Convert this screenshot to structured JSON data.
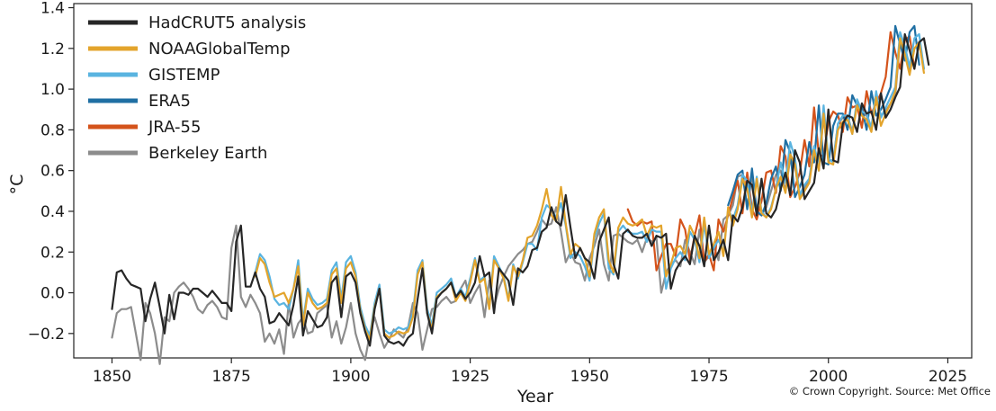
{
  "credit": "© Crown Copyright. Source: Met Office",
  "chart_data": {
    "type": "line",
    "title": "",
    "xlabel": "Year",
    "ylabel": "°C",
    "xlim": [
      1842,
      2030
    ],
    "ylim": [
      -0.32,
      1.42
    ],
    "xticks": [
      1850,
      1875,
      1900,
      1925,
      1950,
      1975,
      2000,
      2025
    ],
    "yticks": [
      -0.2,
      0.0,
      0.2,
      0.4,
      0.6,
      0.8,
      1.0,
      1.2,
      1.4
    ],
    "ytick_labels": [
      "−0.2",
      "0.0",
      "0.2",
      "0.4",
      "0.6",
      "0.8",
      "1.0",
      "1.2",
      "1.4"
    ],
    "grid": false,
    "legend_position": "top-left",
    "series": [
      {
        "name": "Berkeley Earth",
        "color": "#8c8c8c",
        "start": 1850,
        "values": [
          -0.22,
          -0.1,
          -0.08,
          -0.08,
          -0.07,
          -0.2,
          -0.33,
          -0.05,
          -0.1,
          -0.2,
          -0.35,
          -0.12,
          -0.14,
          0.0,
          0.03,
          0.05,
          0.02,
          -0.02,
          -0.08,
          -0.1,
          -0.06,
          -0.04,
          -0.07,
          -0.12,
          -0.13,
          0.22,
          0.33,
          -0.02,
          -0.07,
          -0.01,
          -0.05,
          -0.1,
          -0.24,
          -0.2,
          -0.25,
          -0.18,
          -0.3,
          -0.05,
          -0.22,
          -0.15,
          -0.12,
          -0.2,
          -0.19,
          -0.1,
          -0.08,
          -0.06,
          -0.22,
          -0.14,
          -0.25,
          -0.17,
          -0.05,
          -0.2,
          -0.28,
          -0.33,
          -0.2,
          -0.12,
          -0.2,
          -0.27,
          -0.23,
          -0.18,
          -0.2,
          -0.22,
          -0.17,
          -0.05,
          -0.1,
          -0.28,
          -0.18,
          -0.08,
          -0.07,
          -0.04,
          -0.02,
          -0.05,
          -0.04,
          0.02,
          0.06,
          -0.05,
          0.0,
          0.04,
          -0.12,
          0.06,
          -0.07,
          0.02,
          0.08,
          0.13,
          0.16,
          0.19,
          0.21,
          0.24,
          0.25,
          0.3,
          0.36,
          0.33,
          0.34,
          0.42,
          0.3,
          0.15,
          0.2,
          0.15,
          0.14,
          0.06,
          0.17,
          0.23,
          0.31,
          0.14,
          0.06,
          0.28,
          0.29,
          0.27,
          0.25,
          0.24,
          0.26,
          0.2,
          0.27,
          0.25,
          0.27,
          0.0,
          0.1,
          0.14,
          0.16,
          0.13,
          0.26,
          0.2,
          0.14,
          0.31,
          0.15,
          0.18,
          0.23,
          0.16,
          0.36,
          0.38,
          0.43,
          0.57,
          0.58,
          0.42,
          0.58,
          0.4,
          0.38,
          0.42,
          0.5,
          0.58,
          0.6,
          0.5,
          0.66,
          0.62,
          0.47,
          0.51,
          0.56,
          0.69,
          0.6,
          0.87,
          0.65,
          0.65,
          0.83,
          0.86,
          0.87,
          0.79,
          0.93,
          0.88,
          0.87,
          0.81,
          0.96,
          0.87,
          0.89,
          0.93,
          0.97,
          1.24,
          1.18,
          1.08,
          1.2,
          1.22,
          1.1
        ]
      },
      {
        "name": "JRA-55",
        "color": "#d4531b",
        "start": 1958,
        "values": [
          0.41,
          0.35,
          0.33,
          0.35,
          0.34,
          0.35,
          0.11,
          0.18,
          0.24,
          0.24,
          0.18,
          0.36,
          0.31,
          0.16,
          0.28,
          0.38,
          0.15,
          0.19,
          0.11,
          0.36,
          0.3,
          0.38,
          0.47,
          0.55,
          0.39,
          0.59,
          0.41,
          0.36,
          0.45,
          0.59,
          0.6,
          0.49,
          0.72,
          0.67,
          0.47,
          0.52,
          0.59,
          0.75,
          0.62,
          0.91,
          0.68,
          0.67,
          0.84,
          0.89,
          0.87,
          0.79,
          0.96,
          0.91,
          0.92,
          0.81,
          0.99,
          0.88,
          0.93,
          0.98,
          1.06,
          1.28,
          1.18,
          1.1,
          1.24,
          1.26,
          1.1
        ]
      },
      {
        "name": "ERA5",
        "color": "#1f6fa3",
        "start": 1979,
        "values": [
          0.43,
          0.5,
          0.58,
          0.6,
          0.41,
          0.61,
          0.4,
          0.38,
          0.44,
          0.56,
          0.62,
          0.5,
          0.75,
          0.69,
          0.47,
          0.52,
          0.58,
          0.74,
          0.64,
          0.92,
          0.64,
          0.63,
          0.82,
          0.88,
          0.88,
          0.8,
          0.97,
          0.92,
          0.91,
          0.8,
          0.99,
          0.87,
          0.9,
          0.95,
          1.01,
          1.31,
          1.22,
          1.14,
          1.28,
          1.31,
          1.12
        ]
      },
      {
        "name": "GISTEMP",
        "color": "#5ab4e0",
        "start": 1880,
        "values": [
          0.1,
          0.19,
          0.16,
          0.08,
          -0.03,
          -0.06,
          -0.05,
          -0.08,
          0.02,
          0.16,
          -0.14,
          0.02,
          -0.03,
          -0.06,
          -0.05,
          -0.03,
          0.11,
          0.15,
          -0.03,
          0.15,
          0.18,
          0.1,
          -0.07,
          -0.16,
          -0.21,
          -0.05,
          0.04,
          -0.18,
          -0.2,
          -0.19,
          -0.17,
          -0.18,
          -0.17,
          -0.1,
          0.11,
          0.16,
          -0.08,
          -0.16,
          0.0,
          0.02,
          0.04,
          0.07,
          -0.02,
          0.02,
          -0.02,
          0.07,
          0.17,
          0.06,
          0.08,
          -0.07,
          0.18,
          0.13,
          0.08,
          -0.03,
          0.14,
          0.07,
          0.15,
          0.24,
          0.24,
          0.21,
          0.37,
          0.43,
          0.41,
          0.37,
          0.44,
          0.33,
          0.17,
          0.2,
          0.18,
          0.13,
          0.06,
          0.27,
          0.34,
          0.39,
          0.12,
          0.09,
          0.3,
          0.33,
          0.3,
          0.29,
          0.29,
          0.3,
          0.25,
          0.31,
          0.3,
          0.3,
          0.02,
          0.12,
          0.17,
          0.2,
          0.16,
          0.3,
          0.26,
          0.15,
          0.34,
          0.17,
          0.22,
          0.26,
          0.2,
          0.41,
          0.36,
          0.43,
          0.58,
          0.55,
          0.39,
          0.57,
          0.4,
          0.37,
          0.42,
          0.51,
          0.64,
          0.54,
          0.74,
          0.66,
          0.48,
          0.53,
          0.56,
          0.72,
          0.63,
          0.92,
          0.66,
          0.64,
          0.83,
          0.87,
          0.87,
          0.78,
          0.95,
          0.89,
          0.88,
          0.81,
          0.99,
          0.86,
          0.91,
          0.96,
          1.01,
          1.28,
          1.21,
          1.11,
          1.25,
          1.27,
          1.1
        ]
      },
      {
        "name": "NOAAGlobalTemp",
        "color": "#e3a42c",
        "start": 1880,
        "values": [
          0.08,
          0.17,
          0.14,
          0.05,
          -0.02,
          -0.01,
          0.0,
          -0.05,
          0.02,
          0.13,
          -0.16,
          0.0,
          -0.05,
          -0.08,
          -0.07,
          -0.05,
          0.09,
          0.12,
          -0.05,
          0.12,
          0.15,
          0.08,
          -0.09,
          -0.18,
          -0.23,
          -0.07,
          0.02,
          -0.2,
          -0.22,
          -0.21,
          -0.19,
          -0.2,
          -0.19,
          -0.12,
          0.09,
          0.15,
          -0.1,
          -0.18,
          -0.02,
          0.0,
          0.02,
          0.05,
          -0.04,
          0.0,
          -0.04,
          0.05,
          0.16,
          0.05,
          0.07,
          -0.08,
          0.16,
          0.12,
          0.07,
          -0.04,
          0.13,
          0.08,
          0.16,
          0.27,
          0.28,
          0.33,
          0.41,
          0.51,
          0.38,
          0.35,
          0.52,
          0.34,
          0.19,
          0.24,
          0.22,
          0.17,
          0.08,
          0.29,
          0.37,
          0.41,
          0.16,
          0.1,
          0.32,
          0.37,
          0.34,
          0.33,
          0.34,
          0.36,
          0.28,
          0.33,
          0.32,
          0.33,
          0.08,
          0.14,
          0.22,
          0.23,
          0.19,
          0.33,
          0.28,
          0.17,
          0.37,
          0.19,
          0.24,
          0.3,
          0.18,
          0.42,
          0.33,
          0.41,
          0.56,
          0.51,
          0.37,
          0.56,
          0.39,
          0.37,
          0.41,
          0.51,
          0.57,
          0.49,
          0.68,
          0.63,
          0.46,
          0.5,
          0.54,
          0.7,
          0.6,
          0.88,
          0.64,
          0.63,
          0.8,
          0.84,
          0.85,
          0.78,
          0.92,
          0.87,
          0.85,
          0.79,
          0.96,
          0.82,
          0.88,
          0.93,
          0.99,
          1.25,
          1.17,
          1.07,
          1.2,
          1.23,
          1.08
        ]
      },
      {
        "name": "HadCRUT5 analysis",
        "color": "#262626",
        "start": 1850,
        "values": [
          -0.08,
          0.1,
          0.11,
          0.07,
          0.04,
          0.03,
          0.02,
          -0.14,
          -0.03,
          0.05,
          -0.07,
          -0.2,
          -0.01,
          -0.13,
          0.0,
          0.0,
          -0.01,
          0.02,
          0.02,
          0.0,
          -0.02,
          0.01,
          -0.02,
          -0.05,
          -0.05,
          -0.09,
          0.25,
          0.33,
          0.03,
          0.03,
          0.1,
          0.02,
          -0.02,
          -0.15,
          -0.14,
          -0.1,
          -0.13,
          -0.16,
          -0.06,
          0.08,
          -0.21,
          -0.09,
          -0.13,
          -0.17,
          -0.16,
          -0.12,
          0.05,
          0.08,
          -0.12,
          0.08,
          0.1,
          0.05,
          -0.1,
          -0.19,
          -0.26,
          -0.08,
          0.02,
          -0.21,
          -0.24,
          -0.25,
          -0.24,
          -0.26,
          -0.22,
          -0.2,
          -0.03,
          0.12,
          -0.1,
          -0.2,
          -0.03,
          0.0,
          0.02,
          0.05,
          -0.02,
          0.01,
          -0.03,
          0.0,
          0.05,
          0.18,
          0.08,
          0.1,
          -0.1,
          0.12,
          0.09,
          0.06,
          -0.06,
          0.12,
          0.1,
          0.13,
          0.21,
          0.22,
          0.3,
          0.32,
          0.42,
          0.35,
          0.33,
          0.48,
          0.32,
          0.17,
          0.22,
          0.17,
          0.15,
          0.07,
          0.25,
          0.31,
          0.37,
          0.14,
          0.07,
          0.29,
          0.31,
          0.28,
          0.27,
          0.27,
          0.29,
          0.23,
          0.28,
          0.27,
          0.29,
          0.02,
          0.11,
          0.15,
          0.18,
          0.14,
          0.28,
          0.23,
          0.13,
          0.33,
          0.16,
          0.2,
          0.26,
          0.16,
          0.38,
          0.35,
          0.42,
          0.55,
          0.53,
          0.38,
          0.56,
          0.39,
          0.37,
          0.41,
          0.51,
          0.59,
          0.48,
          0.7,
          0.64,
          0.46,
          0.5,
          0.54,
          0.71,
          0.61,
          0.9,
          0.65,
          0.64,
          0.83,
          0.87,
          0.86,
          0.79,
          0.93,
          0.88,
          0.89,
          0.8,
          0.98,
          0.86,
          0.9,
          0.96,
          1.01,
          1.27,
          1.19,
          1.1,
          1.23,
          1.25,
          1.12
        ]
      }
    ],
    "legend_order": [
      "HadCRUT5 analysis",
      "NOAAGlobalTemp",
      "GISTEMP",
      "ERA5",
      "JRA-55",
      "Berkeley Earth"
    ]
  }
}
